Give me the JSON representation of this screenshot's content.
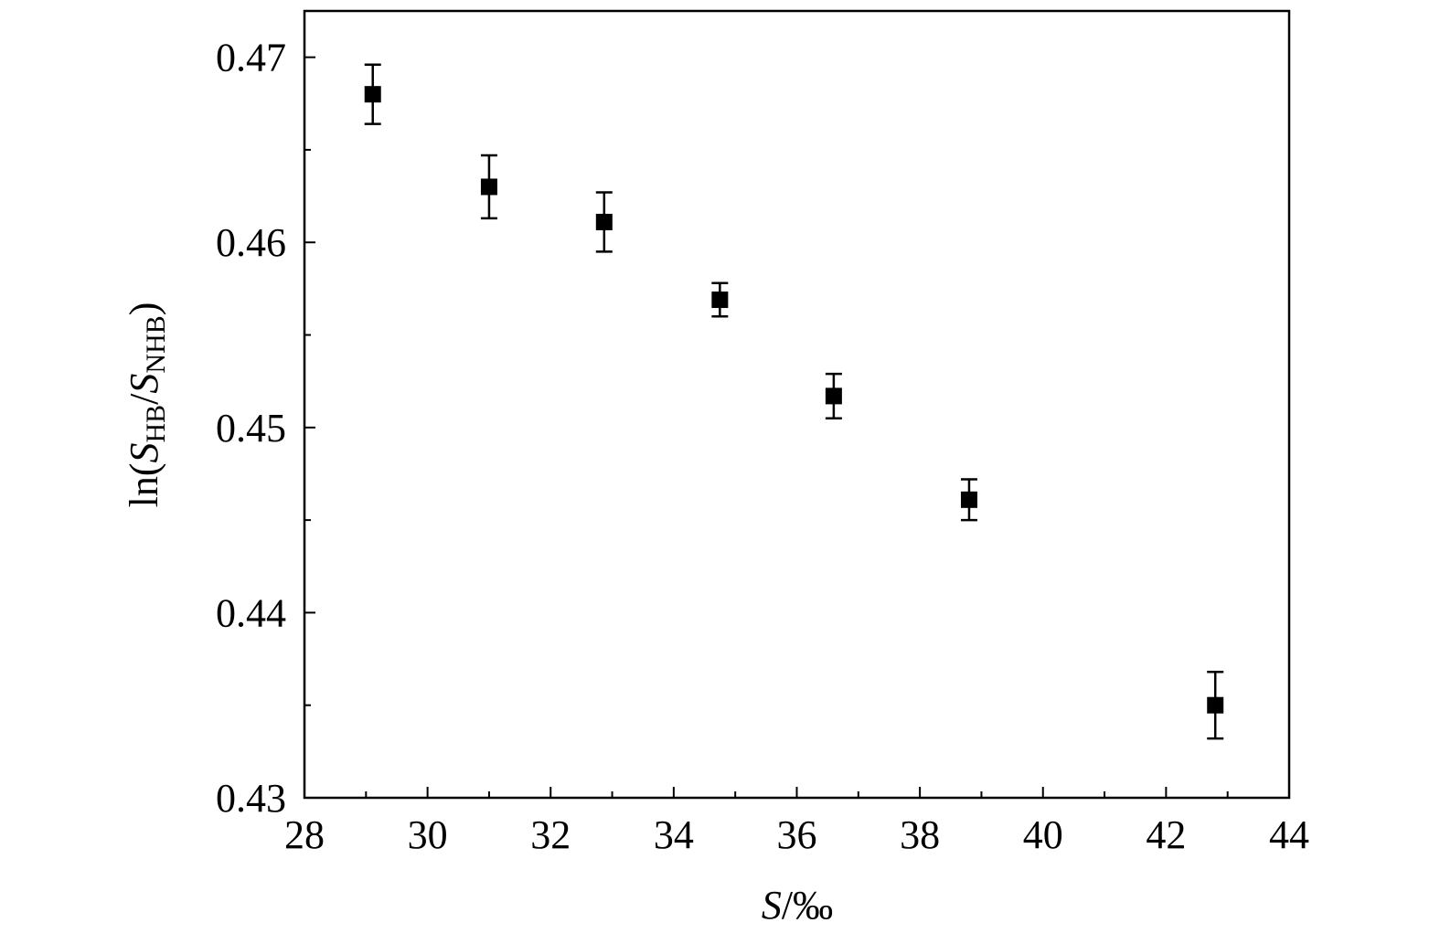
{
  "chart_data": {
    "type": "scatter",
    "xlabel": [
      "S",
      "/‰"
    ],
    "ylabel": [
      "ln(",
      "S",
      "HB",
      "/",
      "S",
      "NHB",
      ")"
    ],
    "x": [
      29.11,
      31.0,
      32.87,
      34.75,
      36.6,
      38.8,
      42.8
    ],
    "y": [
      0.468,
      0.463,
      0.4611,
      0.4569,
      0.4517,
      0.4461,
      0.435
    ],
    "errors": [
      0.0016,
      0.0017,
      0.0016,
      0.0009,
      0.0012,
      0.0011,
      0.0018
    ],
    "color": "#000000",
    "xlim": [
      28,
      44
    ],
    "xticks": [
      28,
      30,
      32,
      34,
      36,
      38,
      40,
      42,
      44
    ],
    "ylim": [
      0.43,
      0.4725
    ],
    "yticks": [
      0.43,
      0.44,
      0.45,
      0.46,
      0.47
    ],
    "minor_ticks": true
  }
}
